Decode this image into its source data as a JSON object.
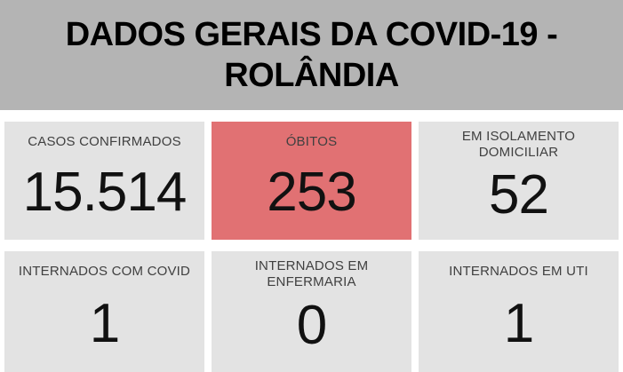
{
  "header": {
    "title": "DADOS GERAIS DA COVID-19 - ROLÂNDIA"
  },
  "colors": {
    "page_bg": "#ffffff",
    "header_bg": "#b4b4b4",
    "card_bg": "#e3e3e3",
    "highlight_card_bg": "#e17173",
    "title_text": "#000000",
    "label_text": "#404040",
    "value_text": "#111111"
  },
  "cards": [
    {
      "label": "CASOS CONFIRMADOS",
      "value": "15.514",
      "highlight": false
    },
    {
      "label": "ÓBITOS",
      "value": "253",
      "highlight": true
    },
    {
      "label": "EM ISOLAMENTO DOMICILIAR",
      "value": "52",
      "highlight": false
    },
    {
      "label": "INTERNADOS COM COVID",
      "value": "1",
      "highlight": false
    },
    {
      "label": "INTERNADOS EM ENFERMARIA",
      "value": "0",
      "highlight": false
    },
    {
      "label": "INTERNADOS EM UTI",
      "value": "1",
      "highlight": false
    }
  ],
  "chart_data": {
    "type": "table",
    "title": "DADOS GERAIS DA COVID-19 - ROLÂNDIA",
    "metrics": [
      {
        "label": "CASOS CONFIRMADOS",
        "value": 15514,
        "value_formatted": "15.514",
        "highlighted": false
      },
      {
        "label": "ÓBITOS",
        "value": 253,
        "value_formatted": "253",
        "highlighted": true
      },
      {
        "label": "EM ISOLAMENTO DOMICILIAR",
        "value": 52,
        "value_formatted": "52",
        "highlighted": false
      },
      {
        "label": "INTERNADOS COM COVID",
        "value": 1,
        "value_formatted": "1",
        "highlighted": false
      },
      {
        "label": "INTERNADOS EM ENFERMARIA",
        "value": 0,
        "value_formatted": "0",
        "highlighted": false
      },
      {
        "label": "INTERNADOS EM UTI",
        "value": 1,
        "value_formatted": "1",
        "highlighted": false
      }
    ],
    "layout_hints": {
      "grid": "3 columns x 2 rows of scorecards",
      "highlight_color": "#e17173",
      "header_banner_color": "#b4b4b4"
    }
  }
}
